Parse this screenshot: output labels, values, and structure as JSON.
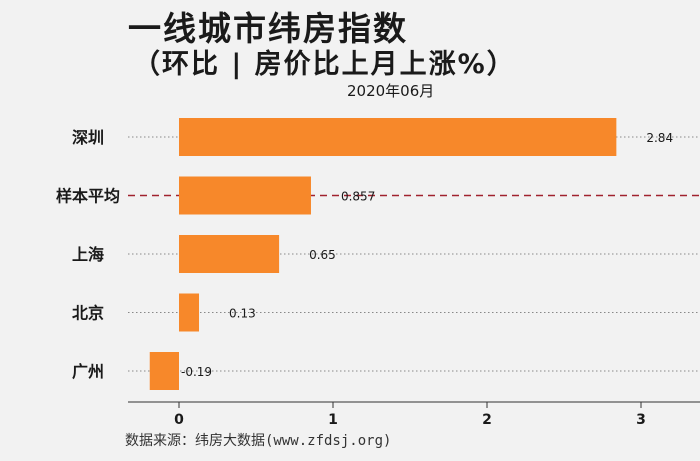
{
  "header": {
    "title": "一线城市纬房指数",
    "subtitle": "（环比 | 房价比上月上涨%）",
    "period": "2020年06月"
  },
  "footer": {
    "source": "数据来源：纬房大数据(www.zfdsj.org)"
  },
  "colors": {
    "bar": "#f7882a",
    "average_line": "#a0222e",
    "gridline": "#888888",
    "background": "#f2f2f2"
  },
  "chart_data": {
    "type": "bar",
    "orientation": "horizontal",
    "categories": [
      "深圳",
      "样本平均",
      "上海",
      "北京",
      "广州"
    ],
    "values": [
      2.84,
      0.857,
      0.65,
      0.13,
      -0.19
    ],
    "value_labels": [
      "2.84",
      "0.857",
      "0.65",
      "0.13",
      "-0.19"
    ],
    "highlight_category": "样本平均",
    "xlim": [
      -0.35,
      3.35
    ],
    "xticks": [
      0,
      1,
      2,
      3
    ],
    "xtick_labels": [
      "0",
      "1",
      "2",
      "3"
    ],
    "title": "一线城市纬房指数",
    "xlabel": "",
    "ylabel": ""
  }
}
